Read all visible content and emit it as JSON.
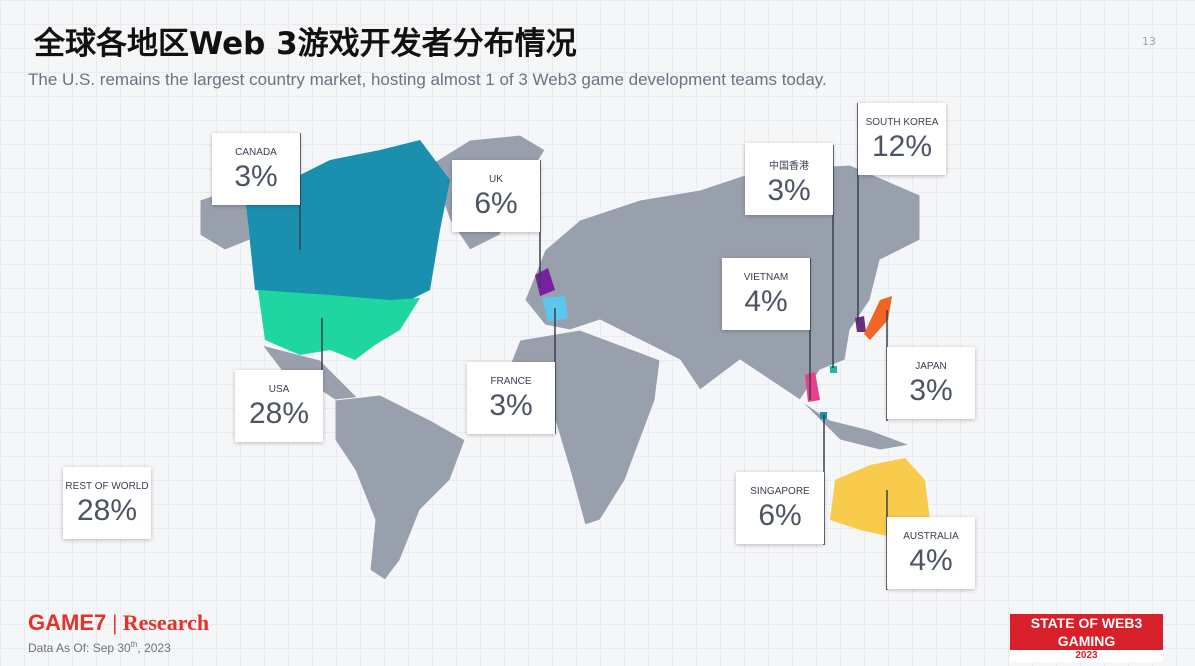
{
  "header": {
    "title": "全球各地区Web 3游戏开发者分布情况",
    "subtitle": "The U.S. remains the largest country market, hosting almost 1 of 3 Web3 game development teams today.",
    "page_number": "13"
  },
  "regions": [
    {
      "name": "CANADA",
      "share": "3%"
    },
    {
      "name": "UK",
      "share": "6%"
    },
    {
      "name": "中国香港",
      "share": "3%"
    },
    {
      "name": "SOUTH KOREA",
      "share": "12%"
    },
    {
      "name": "VIETNAM",
      "share": "4%"
    },
    {
      "name": "USA",
      "share": "28%"
    },
    {
      "name": "FRANCE",
      "share": "3%"
    },
    {
      "name": "JAPAN",
      "share": "3%"
    },
    {
      "name": "SINGAPORE",
      "share": "6%"
    },
    {
      "name": "AUSTRALIA",
      "share": "4%"
    },
    {
      "name": "REST OF WORLD",
      "share": "28%"
    }
  ],
  "footer": {
    "brand": "GAME7",
    "brand_suffix": "| Research",
    "date_prefix": "Data As Of: Sep 30",
    "date_sup": "th",
    "date_suffix": ", 2023",
    "badge": "STATE OF WEB3 GAMING",
    "badge_year": "2023"
  }
}
